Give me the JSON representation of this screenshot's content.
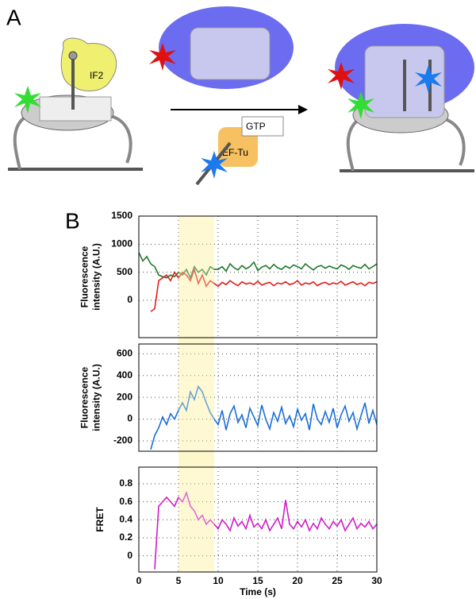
{
  "panel_labels": [
    "A",
    "B"
  ],
  "diagram": {
    "factor": "IF2",
    "nucleotide": "GTP",
    "elongation_factor": "EF-Tu"
  },
  "chart_data": [
    {
      "type": "line",
      "ylabel": [
        "Fluorescence",
        "intensity (A.U.)"
      ],
      "x": [
        0,
        0.5,
        1,
        1.5,
        2,
        2.5,
        3,
        3.5,
        4,
        4.5,
        5,
        5.5,
        6,
        6.5,
        7,
        7.5,
        8,
        8.5,
        9,
        9.5,
        10,
        10.5,
        11,
        11.5,
        12,
        12.5,
        13,
        13.5,
        14,
        14.5,
        15,
        15.5,
        16,
        16.5,
        17,
        17.5,
        18,
        18.5,
        19,
        19.5,
        20,
        20.5,
        21,
        21.5,
        22,
        22.5,
        23,
        23.5,
        24,
        24.5,
        25,
        25.5,
        26,
        26.5,
        27,
        27.5,
        28,
        28.5,
        29,
        29.5,
        30
      ],
      "series": [
        {
          "color": "#1e7a2a",
          "values": [
            850,
            700,
            780,
            650,
            600,
            450,
            420,
            400,
            450,
            420,
            500,
            450,
            550,
            400,
            600,
            500,
            550,
            450,
            600,
            550,
            550,
            600,
            520,
            650,
            580,
            540,
            620,
            560,
            600,
            680,
            530,
            590,
            620,
            560,
            640,
            580,
            550,
            610,
            570,
            630,
            600,
            560,
            650,
            590,
            540,
            600,
            620,
            570,
            610,
            580,
            560,
            630,
            600,
            550,
            620,
            590,
            570,
            640,
            560,
            600,
            650
          ]
        },
        {
          "color": "#e0201a",
          "values": [
            null,
            null,
            null,
            -200,
            -150,
            350,
            400,
            450,
            350,
            500,
            400,
            500,
            450,
            350,
            550,
            300,
            450,
            250,
            350,
            300,
            250,
            320,
            280,
            350,
            300,
            260,
            330,
            290,
            310,
            280,
            340,
            270,
            300,
            320,
            260,
            310,
            290,
            330,
            280,
            300,
            350,
            270,
            310,
            290,
            330,
            260,
            300,
            320,
            280,
            310,
            290,
            340,
            270,
            300,
            330,
            280,
            310,
            260,
            320,
            300,
            330
          ]
        }
      ],
      "xlim": [
        0,
        30
      ],
      "xticks": [
        0,
        5,
        10,
        15,
        20,
        25,
        30
      ],
      "ylim": [
        -665,
        1500
      ],
      "yticks": [
        0,
        500,
        1000,
        1500
      ],
      "grid": true,
      "highlight": [
        5,
        9.5
      ]
    },
    {
      "type": "line",
      "ylabel": [
        "Fluorescence",
        "intensity (A.U.)"
      ],
      "x": [
        0,
        0.5,
        1,
        1.5,
        2,
        2.5,
        3,
        3.5,
        4,
        4.5,
        5,
        5.5,
        6,
        6.5,
        7,
        7.5,
        8,
        8.5,
        9,
        9.5,
        10,
        10.5,
        11,
        11.5,
        12,
        12.5,
        13,
        13.5,
        14,
        14.5,
        15,
        15.5,
        16,
        16.5,
        17,
        17.5,
        18,
        18.5,
        19,
        19.5,
        20,
        20.5,
        21,
        21.5,
        22,
        22.5,
        23,
        23.5,
        24,
        24.5,
        25,
        25.5,
        26,
        26.5,
        27,
        27.5,
        28,
        28.5,
        29,
        29.5,
        30
      ],
      "series": [
        {
          "color": "#1a6fd6",
          "values": [
            null,
            null,
            null,
            -280,
            -150,
            -80,
            20,
            -50,
            50,
            0,
            80,
            150,
            80,
            250,
            180,
            300,
            250,
            150,
            60,
            0,
            -50,
            80,
            -100,
            50,
            120,
            -30,
            40,
            -80,
            100,
            20,
            -60,
            130,
            0,
            -90,
            60,
            -20,
            110,
            -40,
            30,
            -70,
            90,
            -10,
            50,
            -100,
            140,
            0,
            -50,
            70,
            -30,
            100,
            -80,
            40,
            120,
            -20,
            60,
            -90,
            30,
            150,
            -40,
            80,
            -50
          ]
        }
      ],
      "xlim": [
        0,
        30
      ],
      "xticks": [
        0,
        5,
        10,
        15,
        20,
        25,
        30
      ],
      "ylim": [
        -295,
        690
      ],
      "yticks": [
        -200,
        0,
        200,
        400,
        600
      ],
      "grid": true,
      "highlight": [
        5,
        9.5
      ]
    },
    {
      "type": "line",
      "ylabel": [
        "FRET"
      ],
      "xlabel": "Time (s)",
      "x": [
        0,
        0.5,
        1,
        1.5,
        2,
        2.5,
        3,
        3.5,
        4,
        4.5,
        5,
        5.5,
        6,
        6.5,
        7,
        7.5,
        8,
        8.5,
        9,
        9.5,
        10,
        10.5,
        11,
        11.5,
        12,
        12.5,
        13,
        13.5,
        14,
        14.5,
        15,
        15.5,
        16,
        16.5,
        17,
        17.5,
        18,
        18.5,
        19,
        19.5,
        20,
        20.5,
        21,
        21.5,
        22,
        22.5,
        23,
        23.5,
        24,
        24.5,
        25,
        25.5,
        26,
        26.5,
        27,
        27.5,
        28,
        28.5,
        29,
        29.5,
        30
      ],
      "series": [
        {
          "color": "#d21bc8",
          "values": [
            null,
            null,
            null,
            null,
            -0.15,
            0.55,
            0.6,
            0.65,
            0.6,
            0.55,
            0.65,
            0.6,
            0.7,
            0.55,
            0.5,
            0.4,
            0.45,
            0.35,
            0.4,
            0.35,
            0.3,
            0.4,
            0.35,
            0.28,
            0.42,
            0.33,
            0.38,
            0.3,
            0.45,
            0.32,
            0.36,
            0.3,
            0.4,
            0.28,
            0.35,
            0.42,
            0.3,
            0.62,
            0.35,
            0.3,
            0.38,
            0.32,
            0.4,
            0.28,
            0.36,
            0.3,
            0.42,
            0.35,
            0.3,
            0.38,
            0.33,
            0.4,
            0.28,
            0.35,
            0.42,
            0.3,
            0.36,
            0.32,
            0.38,
            0.3,
            0.35
          ]
        }
      ],
      "xlim": [
        0,
        30
      ],
      "xticks": [
        0,
        5,
        10,
        15,
        20,
        25,
        30
      ],
      "ylim": [
        -0.18,
        0.985
      ],
      "yticks": [
        0,
        0.2,
        0.4,
        0.6,
        0.8
      ],
      "grid": true,
      "highlight": [
        5,
        9.5
      ]
    }
  ]
}
